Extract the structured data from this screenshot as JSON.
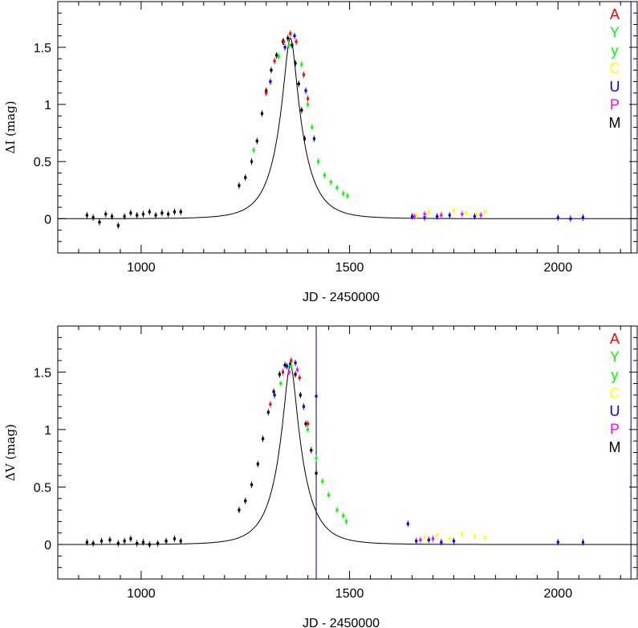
{
  "chart_data": [
    {
      "type": "scatter",
      "xlabel": "JD - 2450000",
      "ylabel": "ΔI (mag)",
      "xlim": [
        800,
        2190
      ],
      "ylim": [
        -0.3,
        1.9
      ],
      "x_ticks": [
        1000,
        1500,
        2000
      ],
      "y_ticks": [
        0,
        0.5,
        1,
        1.5
      ],
      "x_tick_labels": [
        "1000",
        "1500",
        "2000"
      ],
      "y_tick_labels": [
        "0",
        "0.5",
        "1",
        "1.5"
      ],
      "legend": {
        "position": "top-right",
        "entries": [
          {
            "label": "A",
            "color": "#ff0000"
          },
          {
            "label": "Y",
            "color": "#00ff00"
          },
          {
            "label": "y",
            "color": "#00ff00"
          },
          {
            "label": "C",
            "color": "#ffff00"
          },
          {
            "label": "U",
            "color": "#0000ff"
          },
          {
            "label": "P",
            "color": "#ff00ff"
          },
          {
            "label": "M",
            "color": "#000000"
          }
        ]
      },
      "vertical_lines": [
        2175
      ],
      "model_curve": {
        "peak_x": 1358,
        "peak_y": 1.58,
        "tE": 62,
        "u0": 0.22
      },
      "series": [
        {
          "name": "M",
          "color": "#000000",
          "points": [
            [
              870,
              0.03
            ],
            [
              885,
              0.01
            ],
            [
              900,
              -0.03
            ],
            [
              915,
              0.04
            ],
            [
              930,
              0.02
            ],
            [
              945,
              -0.06
            ],
            [
              960,
              0.02
            ],
            [
              975,
              0.05
            ],
            [
              990,
              0.03
            ],
            [
              1005,
              0.04
            ],
            [
              1020,
              0.06
            ],
            [
              1035,
              0.03
            ],
            [
              1050,
              0.05
            ],
            [
              1065,
              0.04
            ],
            [
              1080,
              0.06
            ],
            [
              1095,
              0.06
            ],
            [
              1235,
              0.29
            ],
            [
              1250,
              0.36
            ],
            [
              1265,
              0.5
            ],
            [
              1278,
              0.68
            ],
            [
              1290,
              0.92
            ],
            [
              1300,
              1.12
            ],
            [
              1312,
              1.3
            ],
            [
              1325,
              1.43
            ],
            [
              1340,
              1.55
            ],
            [
              1352,
              1.58
            ],
            [
              1362,
              1.52
            ],
            [
              1370,
              1.36
            ],
            [
              1378,
              1.18
            ],
            [
              1385,
              0.95
            ],
            [
              1392,
              0.7
            ]
          ]
        },
        {
          "name": "A",
          "color": "#ff0000",
          "points": [
            [
              1300,
              1.1
            ],
            [
              1320,
              1.38
            ],
            [
              1342,
              1.55
            ],
            [
              1358,
              1.62
            ],
            [
              1372,
              1.55
            ],
            [
              1390,
              1.26
            ],
            [
              1400,
              1.05
            ]
          ]
        },
        {
          "name": "Y",
          "color": "#00ff00",
          "points": [
            [
              1270,
              0.6
            ],
            [
              1330,
              1.42
            ],
            [
              1355,
              1.52
            ],
            [
              1385,
              1.35
            ],
            [
              1400,
              1.0
            ],
            [
              1410,
              0.8
            ],
            [
              1425,
              0.5
            ],
            [
              1440,
              0.38
            ],
            [
              1455,
              0.32
            ],
            [
              1470,
              0.27
            ],
            [
              1485,
              0.22
            ],
            [
              1495,
              0.2
            ]
          ]
        },
        {
          "name": "C",
          "color": "#ffff00",
          "points": [
            [
              1660,
              0.03
            ],
            [
              1690,
              0.06
            ],
            [
              1720,
              0.04
            ],
            [
              1750,
              0.07
            ],
            [
              1780,
              0.05
            ],
            [
              1805,
              0.04
            ],
            [
              1825,
              0.06
            ]
          ]
        },
        {
          "name": "U",
          "color": "#0000ff",
          "points": [
            [
              1310,
              1.2
            ],
            [
              1345,
              1.5
            ],
            [
              1368,
              1.6
            ],
            [
              1395,
              1.12
            ],
            [
              1415,
              0.7
            ],
            [
              1650,
              0.02
            ],
            [
              1680,
              0.01
            ],
            [
              1710,
              0.02
            ],
            [
              1740,
              0.03
            ],
            [
              1800,
              0.02
            ],
            [
              2000,
              0.01
            ],
            [
              2030,
              0.0
            ],
            [
              2060,
              0.01
            ]
          ]
        },
        {
          "name": "P",
          "color": "#ff00ff",
          "points": [
            [
              1655,
              0.02
            ],
            [
              1680,
              0.04
            ],
            [
              1720,
              0.03
            ],
            [
              1770,
              0.04
            ],
            [
              1815,
              0.03
            ]
          ]
        }
      ]
    },
    {
      "type": "scatter",
      "xlabel": "JD - 2450000",
      "ylabel": "ΔV (mag)",
      "xlim": [
        800,
        2190
      ],
      "ylim": [
        -0.3,
        1.9
      ],
      "x_ticks": [
        1000,
        1500,
        2000
      ],
      "y_ticks": [
        0,
        0.5,
        1,
        1.5
      ],
      "x_tick_labels": [
        "1000",
        "1500",
        "2000"
      ],
      "y_tick_labels": [
        "0",
        "0.5",
        "1",
        "1.5"
      ],
      "legend": {
        "position": "top-right",
        "entries": [
          {
            "label": "A",
            "color": "#ff0000"
          },
          {
            "label": "Y",
            "color": "#00ff00"
          },
          {
            "label": "y",
            "color": "#00ff00"
          },
          {
            "label": "C",
            "color": "#ffff00"
          },
          {
            "label": "U",
            "color": "#0000ff"
          },
          {
            "label": "P",
            "color": "#ff00ff"
          },
          {
            "label": "M",
            "color": "#000000"
          }
        ]
      },
      "vertical_lines": [
        1420,
        2175
      ],
      "model_curve": {
        "peak_x": 1358,
        "peak_y": 1.56,
        "tE": 62,
        "u0": 0.22
      },
      "series": [
        {
          "name": "M",
          "color": "#000000",
          "points": [
            [
              870,
              0.02
            ],
            [
              885,
              0.01
            ],
            [
              905,
              0.03
            ],
            [
              925,
              0.04
            ],
            [
              945,
              0.01
            ],
            [
              960,
              0.03
            ],
            [
              975,
              0.05
            ],
            [
              990,
              0.01
            ],
            [
              1005,
              0.02
            ],
            [
              1020,
              0.0
            ],
            [
              1040,
              0.01
            ],
            [
              1060,
              0.03
            ],
            [
              1080,
              0.05
            ],
            [
              1095,
              0.03
            ],
            [
              1235,
              0.3
            ],
            [
              1250,
              0.38
            ],
            [
              1265,
              0.52
            ],
            [
              1280,
              0.7
            ],
            [
              1292,
              0.92
            ],
            [
              1305,
              1.15
            ],
            [
              1318,
              1.33
            ],
            [
              1332,
              1.48
            ],
            [
              1345,
              1.56
            ],
            [
              1358,
              1.57
            ],
            [
              1370,
              1.48
            ],
            [
              1382,
              1.3
            ],
            [
              1395,
              1.05
            ],
            [
              1408,
              0.82
            ],
            [
              1420,
              0.62
            ]
          ]
        },
        {
          "name": "A",
          "color": "#ff0000",
          "points": [
            [
              1310,
              1.22
            ],
            [
              1340,
              1.5
            ],
            [
              1360,
              1.6
            ],
            [
              1380,
              1.45
            ],
            [
              1400,
              1.05
            ]
          ]
        },
        {
          "name": "Y",
          "color": "#00ff00",
          "points": [
            [
              1335,
              1.4
            ],
            [
              1360,
              1.55
            ],
            [
              1400,
              1.0
            ],
            [
              1420,
              0.75
            ],
            [
              1435,
              0.55
            ],
            [
              1450,
              0.43
            ],
            [
              1470,
              0.3
            ],
            [
              1485,
              0.25
            ],
            [
              1492,
              0.2
            ]
          ]
        },
        {
          "name": "C",
          "color": "#ffff00",
          "points": [
            [
              1680,
              0.06
            ],
            [
              1710,
              0.08
            ],
            [
              1740,
              0.05
            ],
            [
              1770,
              0.09
            ],
            [
              1800,
              0.07
            ],
            [
              1825,
              0.06
            ]
          ]
        },
        {
          "name": "U",
          "color": "#0000ff",
          "points": [
            [
              1320,
              1.3
            ],
            [
              1350,
              1.55
            ],
            [
              1370,
              1.58
            ],
            [
              1390,
              1.2
            ],
            [
              1420,
              1.29
            ],
            [
              1640,
              0.18
            ],
            [
              1660,
              0.03
            ],
            [
              1690,
              0.04
            ],
            [
              1720,
              0.02
            ],
            [
              1750,
              0.03
            ],
            [
              2000,
              0.02
            ],
            [
              2060,
              0.02
            ]
          ]
        },
        {
          "name": "P",
          "color": "#ff00ff",
          "points": [
            [
              1355,
              1.5
            ],
            [
              1375,
              1.52
            ],
            [
              1670,
              0.04
            ],
            [
              1700,
              0.05
            ]
          ]
        }
      ]
    }
  ]
}
